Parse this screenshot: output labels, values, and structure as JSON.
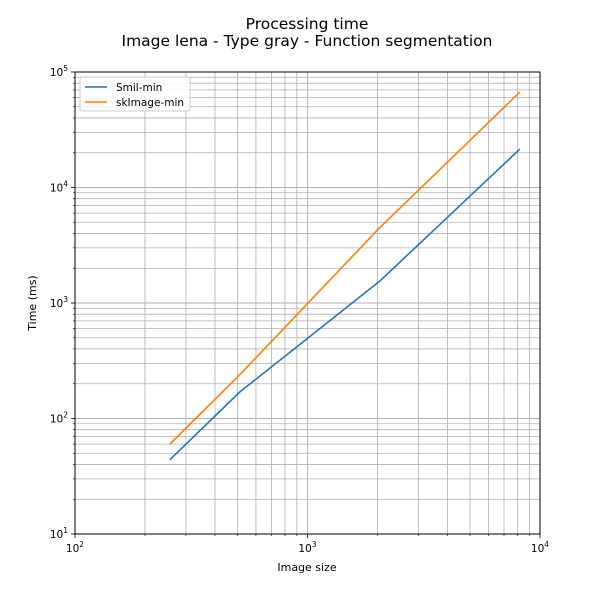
{
  "chart_data": {
    "type": "line",
    "title": "Processing time",
    "subtitle": "Image lena - Type gray - Function segmentation",
    "xlabel": "Image size",
    "ylabel": "Time (ms)",
    "xscale": "log",
    "yscale": "log",
    "xlim": [
      100,
      10000
    ],
    "ylim": [
      10,
      100000
    ],
    "grid": "both major and minor",
    "legend_position": "top-left",
    "x_ticks": [
      {
        "base": "10",
        "exp": "2",
        "value": 100
      },
      {
        "base": "10",
        "exp": "3",
        "value": 1000
      },
      {
        "base": "10",
        "exp": "4",
        "value": 10000
      }
    ],
    "y_ticks": [
      {
        "base": "10",
        "exp": "1",
        "value": 10
      },
      {
        "base": "10",
        "exp": "2",
        "value": 100
      },
      {
        "base": "10",
        "exp": "3",
        "value": 1000
      },
      {
        "base": "10",
        "exp": "4",
        "value": 10000
      },
      {
        "base": "10",
        "exp": "5",
        "value": 100000
      }
    ],
    "series": [
      {
        "name": "Smil-min",
        "color": "#1f77b4",
        "x": [
          256,
          512,
          2048,
          8192
        ],
        "y": [
          44,
          170,
          1550,
          21500
        ]
      },
      {
        "name": "skImage-min",
        "color": "#ff7f0e",
        "x": [
          256,
          512,
          2048,
          8192
        ],
        "y": [
          60,
          240,
          4500,
          67000
        ]
      }
    ]
  }
}
